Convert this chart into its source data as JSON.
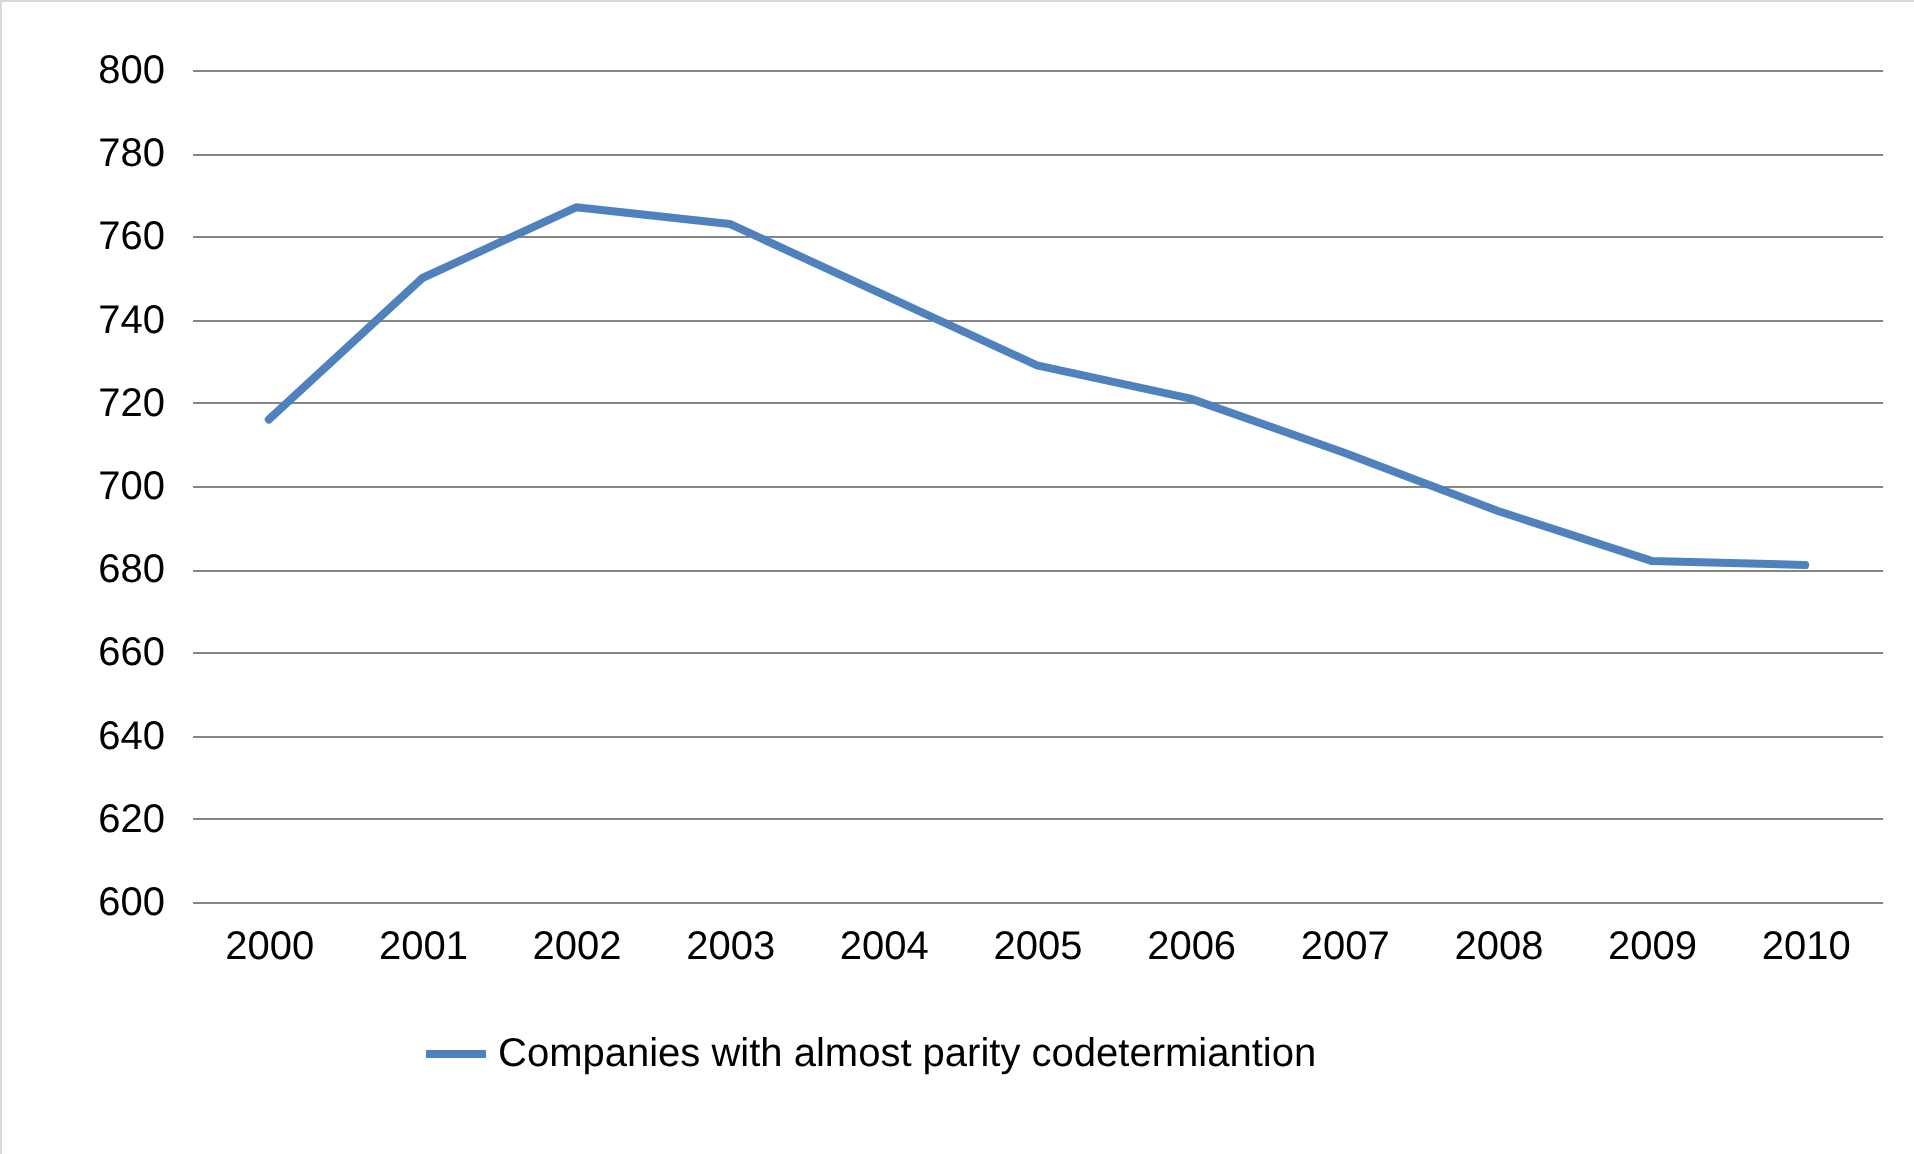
{
  "chart_data": {
    "type": "line",
    "categories": [
      "2000",
      "2001",
      "2002",
      "2003",
      "2004",
      "2005",
      "2006",
      "2007",
      "2008",
      "2009",
      "2010"
    ],
    "series": [
      {
        "name": "Companies with almost parity codetermiantion",
        "color": "#4f81bd",
        "values": [
          716,
          750,
          767,
          763,
          746,
          729,
          721,
          708,
          694,
          682,
          681
        ]
      }
    ],
    "ylim": [
      600,
      800
    ],
    "yticks": [
      600,
      620,
      640,
      660,
      680,
      700,
      720,
      740,
      760,
      780,
      800
    ],
    "grid": "y",
    "legend": "bottom"
  }
}
